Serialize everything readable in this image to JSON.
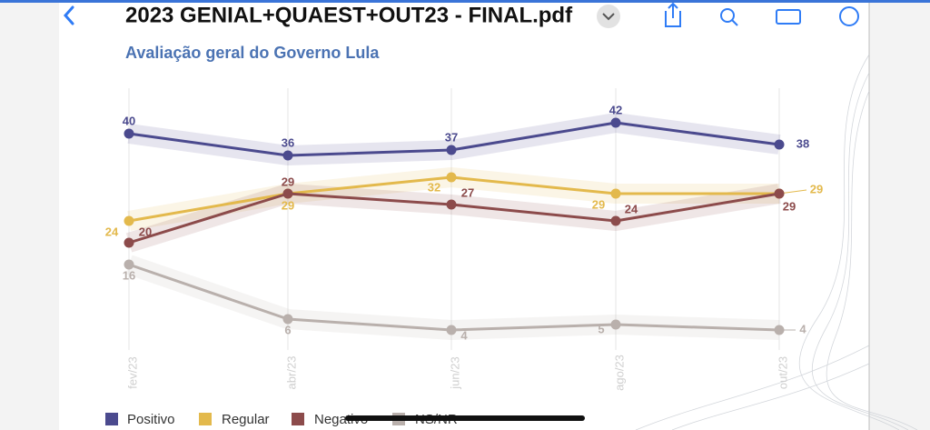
{
  "viewer": {
    "file_title": "2023 GENIAL+QUAEST+OUT23 - FINAL.pdf"
  },
  "chart_data": {
    "type": "line",
    "title": "Avaliação geral do Governo Lula",
    "categories": [
      "fev/23",
      "abr/23",
      "jun/23",
      "ago/23",
      "out/23"
    ],
    "series": [
      {
        "name": "Positivo",
        "color": "#4b4a8e",
        "values": [
          40,
          36,
          37,
          42,
          38
        ]
      },
      {
        "name": "Regular",
        "color": "#e3b94c",
        "values": [
          24,
          29,
          32,
          29,
          29
        ]
      },
      {
        "name": "Negativo",
        "color": "#8c4b4b",
        "values": [
          20,
          29,
          27,
          24,
          29
        ]
      },
      {
        "name": "NS/NR",
        "color": "#b9b0ac",
        "values": [
          16,
          6,
          4,
          5,
          4
        ]
      }
    ],
    "grid": true
  }
}
